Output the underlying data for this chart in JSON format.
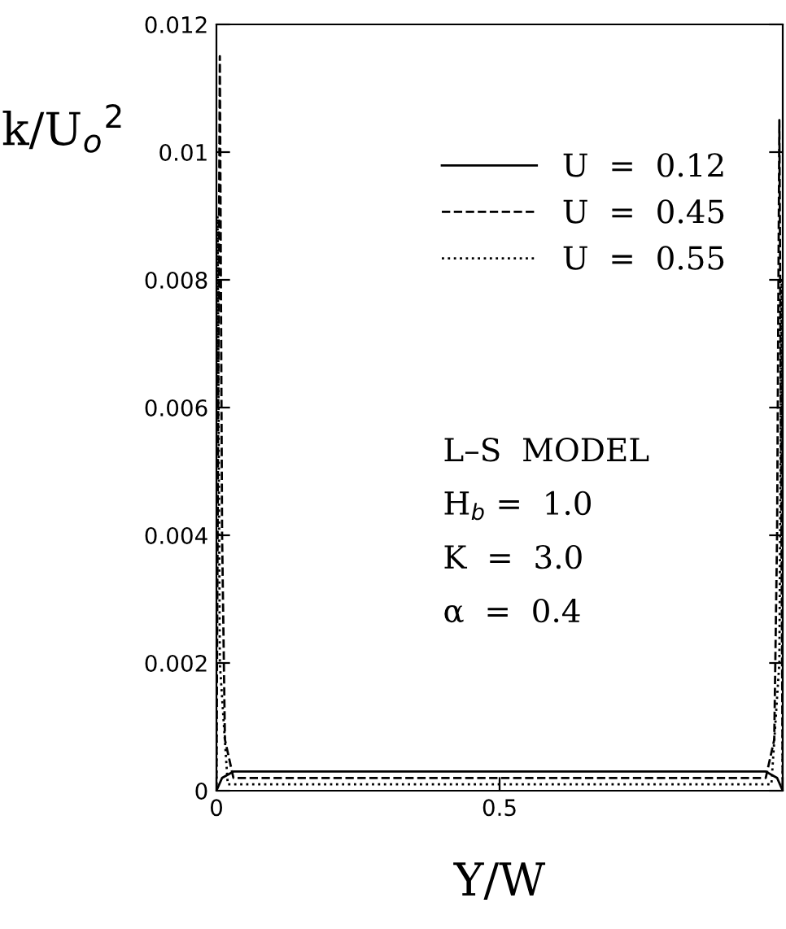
{
  "chart_data": {
    "type": "line",
    "xlabel": "Y/W",
    "ylabel": "k/U$_{o}$$^{2}$",
    "xlim": [
      0,
      1
    ],
    "ylim": [
      0,
      0.012
    ],
    "xticks": [
      0,
      0.5,
      {
        "value": 1,
        "label": null
      }
    ],
    "yticks": [
      0,
      0.002,
      0.004,
      0.006,
      0.008,
      0.01,
      0.012
    ],
    "legend": "top right",
    "grid": false,
    "series": [
      {
        "name": "U  =  0.12",
        "color": "#000000",
        "line_style": "solid",
        "x": [
          0,
          0.01,
          0.03,
          0.5,
          0.97,
          0.99,
          1
        ],
        "values": [
          0,
          0.0002,
          0.0003,
          0.0003,
          0.0003,
          0.0002,
          0
        ]
      },
      {
        "name": "U  =  0.45",
        "color": "#000000",
        "line_style": "dashed",
        "x": [
          0,
          0.006,
          0.01,
          0.015,
          0.03,
          0.5,
          0.97,
          0.985,
          0.99,
          0.994,
          1
        ],
        "values": [
          0,
          0.0115,
          0.004,
          0.0008,
          0.0002,
          0.0002,
          0.0002,
          0.0008,
          0.004,
          0.0105,
          0
        ]
      },
      {
        "name": "U  =  0.55",
        "color": "#000000",
        "line_style": "dotted",
        "x": [
          0,
          0.002,
          0.006,
          0.02,
          0.5,
          0.98,
          0.994,
          0.998,
          1
        ],
        "values": [
          0,
          0.009,
          0.002,
          0.0001,
          0.0001,
          0.0001,
          0.002,
          0.008,
          0
        ]
      }
    ],
    "annotations": [
      "L–S  MODEL",
      "H$_{b}$ =  1.0",
      "K  =  3.0",
      "α  =  0.4"
    ]
  }
}
